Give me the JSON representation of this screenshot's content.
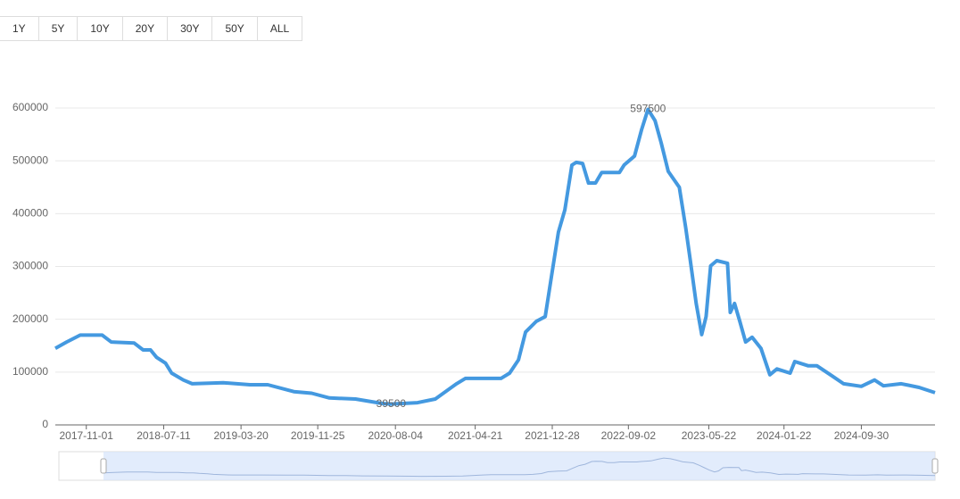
{
  "range_buttons": [
    "1Y",
    "5Y",
    "10Y",
    "20Y",
    "30Y",
    "50Y",
    "ALL"
  ],
  "chart_data": {
    "type": "line",
    "color": "#4499e0",
    "grid": true,
    "x": [
      "2017-07-23",
      "2017-08-29",
      "2017-10-12",
      "2017-12-23",
      "2018-01-21",
      "2018-04-06",
      "2018-05-05",
      "2018-05-29",
      "2018-06-18",
      "2018-07-17",
      "2018-08-06",
      "2018-09-13",
      "2018-10-12",
      "2019-01-21",
      "2019-04-18",
      "2019-06-15",
      "2019-09-08",
      "2019-11-05",
      "2020-01-02",
      "2020-03-27",
      "2020-06-22",
      "2020-07-21",
      "2020-10-15",
      "2020-12-12",
      "2021-02-19",
      "2021-03-20",
      "2021-07-14",
      "2021-08-11",
      "2021-09-09",
      "2021-10-02",
      "2021-11-06",
      "2021-12-05",
      "2021-12-25",
      "2022-01-17",
      "2022-02-07",
      "2022-03-02",
      "2022-03-16",
      "2022-04-06",
      "2022-04-25",
      "2022-05-18",
      "2022-06-07",
      "2022-08-04",
      "2022-08-19",
      "2022-09-22",
      "2022-10-15",
      "2022-11-05",
      "2022-11-28",
      "2022-12-18",
      "2023-01-10",
      "2023-02-15",
      "2023-03-08",
      "2023-03-22",
      "2023-04-11",
      "2023-04-29",
      "2023-05-13",
      "2023-05-28",
      "2023-06-17",
      "2023-07-22",
      "2023-07-31",
      "2023-08-14",
      "2023-08-31",
      "2023-09-19",
      "2023-10-10",
      "2023-11-08",
      "2023-12-07",
      "2023-12-30",
      "2024-02-11",
      "2024-02-26",
      "2024-04-09",
      "2024-05-08",
      "2024-06-21",
      "2024-08-03",
      "2024-09-30",
      "2024-11-12",
      "2024-12-11",
      "2025-02-07",
      "2025-04-06",
      "2025-05-28"
    ],
    "series": [
      {
        "values": [
          145000,
          157000,
          170000,
          170000,
          157000,
          155000,
          142000,
          142000,
          128000,
          117000,
          98000,
          85000,
          78000,
          80000,
          76000,
          76000,
          63000,
          60000,
          51000,
          49000,
          40500,
          39500,
          42000,
          49000,
          78000,
          88000,
          88000,
          98000,
          123000,
          176000,
          196000,
          205000,
          280000,
          365000,
          407000,
          492000,
          497000,
          495000,
          458000,
          458000,
          478000,
          478000,
          492000,
          509000,
          559000,
          597500,
          576000,
          534000,
          480000,
          450000,
          373000,
          314000,
          230000,
          171000,
          205000,
          301000,
          311000,
          306000,
          213000,
          230000,
          196000,
          157000,
          166000,
          145000,
          95000,
          106000,
          98000,
          120000,
          112000,
          112000,
          95000,
          78000,
          73000,
          85000,
          74000,
          78000,
          71000,
          61000
        ]
      }
    ],
    "markers": [
      {
        "x": "2022-11-05",
        "value": 597500
      },
      {
        "x": "2020-07-21",
        "value": 39500
      }
    ],
    "xlim": [
      "2017-07-23",
      "2025-05-28"
    ],
    "xticks": [
      "2017-11-01",
      "2018-07-11",
      "2019-03-20",
      "2019-11-25",
      "2020-08-04",
      "2021-04-21",
      "2021-12-28",
      "2022-09-02",
      "2023-05-22",
      "2024-01-22",
      "2024-09-30"
    ],
    "ylim": [
      0,
      600000
    ],
    "yticks": [
      0,
      100000,
      200000,
      300000,
      400000,
      500000,
      600000
    ]
  }
}
